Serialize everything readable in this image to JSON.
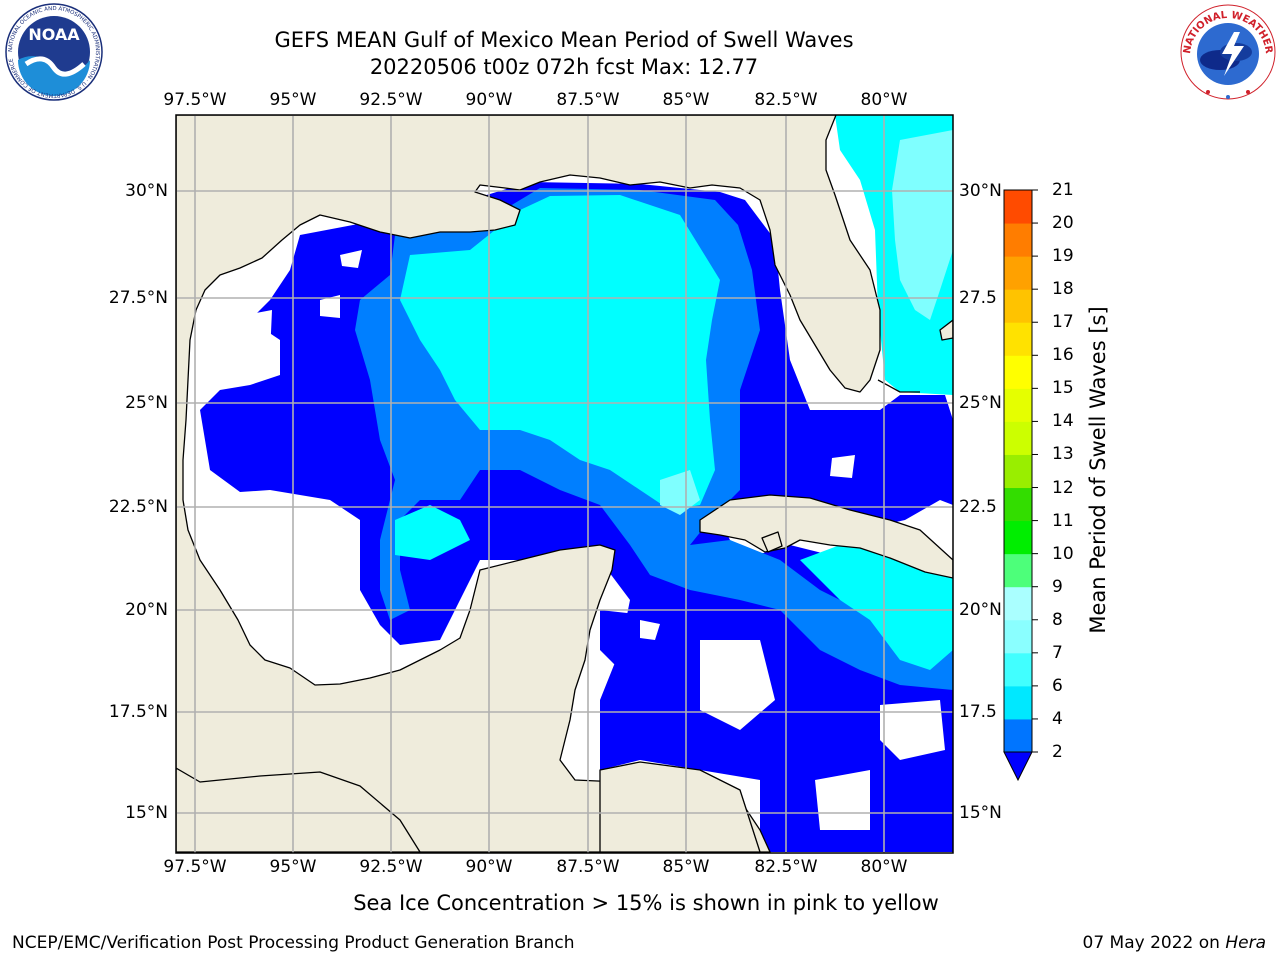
{
  "header": {
    "title_line1": "GEFS MEAN Gulf of Mexico Mean Period of Swell Waves",
    "title_line2": "20220506 t00z 072h fcst   Max: 12.77"
  },
  "logos": {
    "left": {
      "name": "noaa-logo",
      "text": "NOAA",
      "ring_text": "NATIONAL OCEANIC AND ATMOSPHERIC ADMINISTRATION · U.S. DEPARTMENT OF COMMERCE"
    },
    "right": {
      "name": "nws-logo",
      "ring_text": "NATIONAL WEATHER SERVICE"
    }
  },
  "map": {
    "lon_ticks": [
      "97.5°W",
      "95°W",
      "92.5°W",
      "90°W",
      "87.5°W",
      "85°W",
      "82.5°W",
      "80°W"
    ],
    "lat_ticks_left": [
      "30°N",
      "27.5°N",
      "25°N",
      "22.5°N",
      "20°N",
      "17.5°N",
      "15°N"
    ],
    "lat_ticks_right": [
      "30°N",
      "27.5",
      "25°N",
      "22.5",
      "20°N",
      "17.5",
      "15°N"
    ],
    "extent": {
      "lon_min": -98,
      "lon_max": -78.2,
      "lat_min": 14.0,
      "lat_max": 31.6
    },
    "colors": {
      "land": "#efecdc",
      "ocean_missing": "#ffffff",
      "grid": "#b0b0b0"
    },
    "fields": [
      {
        "name": "swell-period-2-4s",
        "color": "#0000ff"
      },
      {
        "name": "swell-period-4-6s",
        "color": "#007fff"
      },
      {
        "name": "swell-period-6-8s",
        "color": "#00ffff"
      },
      {
        "name": "swell-period-8-9s",
        "color": "#7fffff"
      },
      {
        "name": "swell-period-9-10s",
        "color": "#51ff81"
      },
      {
        "name": "swell-period-10-11s",
        "color": "#00e400"
      }
    ]
  },
  "colorbar": {
    "label": "Mean Period of Swell Waves [s]",
    "ticks": [
      "2",
      "4",
      "6",
      "7",
      "8",
      "9",
      "10",
      "11",
      "12",
      "13",
      "14",
      "15",
      "16",
      "17",
      "18",
      "19",
      "20",
      "21"
    ],
    "colors": [
      "#0075ff",
      "#00e8ff",
      "#41ffff",
      "#8affff",
      "#aaffff",
      "#4dff7a",
      "#00ee00",
      "#33dd00",
      "#99ee00",
      "#ccff00",
      "#e5ff00",
      "#ffff00",
      "#ffe200",
      "#ffc300",
      "#ffa100",
      "#ff7d00",
      "#ff4b00",
      "#ff0000"
    ],
    "extend_min": true
  },
  "footer": {
    "note": "Sea Ice Concentration > 15% is shown in pink to yellow",
    "credit_left": "NCEP/EMC/Verification Post Processing Product Generation Branch",
    "credit_date": "07 May 2022 on ",
    "credit_machine": "Hera"
  }
}
